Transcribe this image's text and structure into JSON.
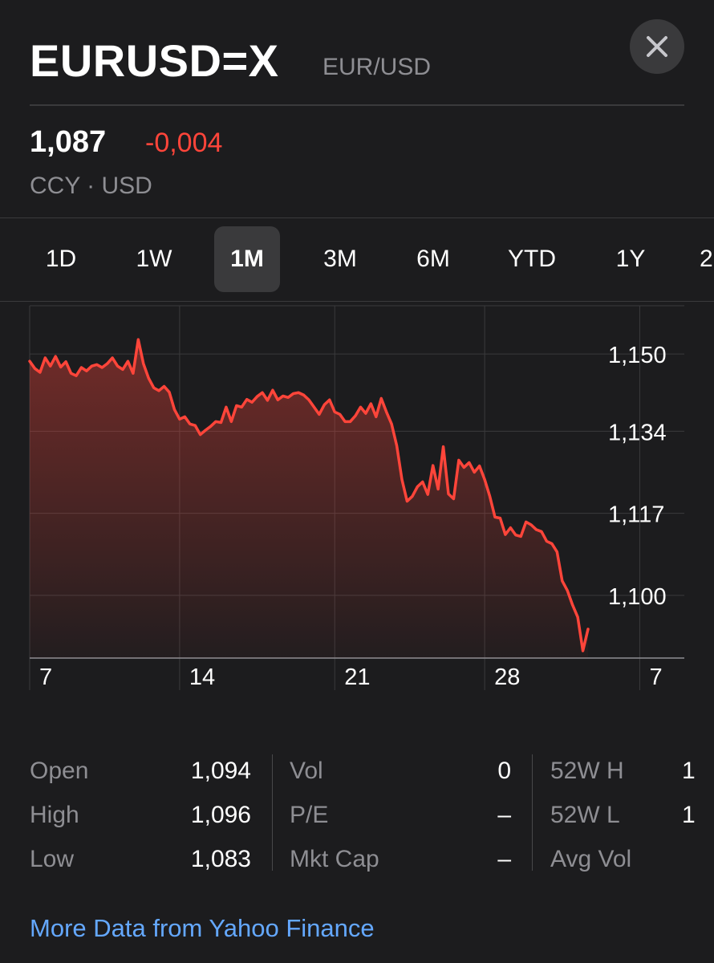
{
  "header": {
    "symbol": "EURUSD=X",
    "pair": "EUR/USD",
    "price": "1,087",
    "change": "-0,004",
    "meta": "CCY · USD",
    "close_icon": "close-icon"
  },
  "tabs": [
    {
      "label": "1D",
      "active": false
    },
    {
      "label": "1W",
      "active": false
    },
    {
      "label": "1M",
      "active": true
    },
    {
      "label": "3M",
      "active": false
    },
    {
      "label": "6M",
      "active": false
    },
    {
      "label": "YTD",
      "active": false
    },
    {
      "label": "1Y",
      "active": false
    },
    {
      "label": "2",
      "active": false
    }
  ],
  "chart_data": {
    "type": "area",
    "color": "#ff453a",
    "ylim": [
      1.087,
      1.16
    ],
    "y_ticks": [
      {
        "value": 1.15,
        "label": "1,150"
      },
      {
        "value": 1.134,
        "label": "1,134"
      },
      {
        "value": 1.117,
        "label": "1,117"
      },
      {
        "value": 1.1,
        "label": "1,100"
      }
    ],
    "x_ticks": [
      {
        "index": 0,
        "label": "7"
      },
      {
        "index": 29,
        "label": "14"
      },
      {
        "index": 59,
        "label": "21"
      },
      {
        "index": 88,
        "label": "28"
      },
      {
        "index": 118,
        "label": "7"
      }
    ],
    "series": [
      {
        "values": [
          1.1485,
          1.147,
          1.1462,
          1.1492,
          1.1475,
          1.1495,
          1.1473,
          1.1484,
          1.146,
          1.1455,
          1.1472,
          1.1465,
          1.1475,
          1.1478,
          1.1472,
          1.148,
          1.1492,
          1.1475,
          1.1468,
          1.1485,
          1.146,
          1.153,
          1.148,
          1.145,
          1.143,
          1.1424,
          1.1433,
          1.1421,
          1.1385,
          1.1365,
          1.137,
          1.1355,
          1.1352,
          1.1333,
          1.1342,
          1.135,
          1.136,
          1.1358,
          1.139,
          1.136,
          1.1393,
          1.139,
          1.1406,
          1.14,
          1.1412,
          1.142,
          1.1404,
          1.1425,
          1.1405,
          1.1413,
          1.141,
          1.1418,
          1.142,
          1.1415,
          1.1405,
          1.139,
          1.1375,
          1.1395,
          1.1405,
          1.138,
          1.1375,
          1.136,
          1.136,
          1.1372,
          1.139,
          1.1377,
          1.1397,
          1.137,
          1.1408,
          1.138,
          1.1355,
          1.131,
          1.124,
          1.1195,
          1.1205,
          1.1225,
          1.1235,
          1.1209,
          1.1269,
          1.122,
          1.1308,
          1.121,
          1.12,
          1.128,
          1.1265,
          1.1275,
          1.1255,
          1.1268,
          1.124,
          1.1205,
          1.1162,
          1.116,
          1.1126,
          1.114,
          1.1125,
          1.1122,
          1.1152,
          1.1146,
          1.1136,
          1.1132,
          1.1112,
          1.1107,
          1.109,
          1.103,
          1.101,
          1.098,
          1.0955,
          1.0885,
          1.093
        ]
      }
    ],
    "grid": true
  },
  "stats": [
    [
      {
        "label": "Open",
        "value": "1,094"
      },
      {
        "label": "High",
        "value": "1,096"
      },
      {
        "label": "Low",
        "value": "1,083"
      }
    ],
    [
      {
        "label": "Vol",
        "value": "0"
      },
      {
        "label": "P/E",
        "value": "–"
      },
      {
        "label": "Mkt Cap",
        "value": "–"
      }
    ],
    [
      {
        "label": "52W H",
        "value": "1"
      },
      {
        "label": "52W L",
        "value": "1"
      },
      {
        "label": "Avg Vol",
        "value": ""
      }
    ]
  ],
  "footer": {
    "more_link": "More Data from Yahoo Finance"
  }
}
